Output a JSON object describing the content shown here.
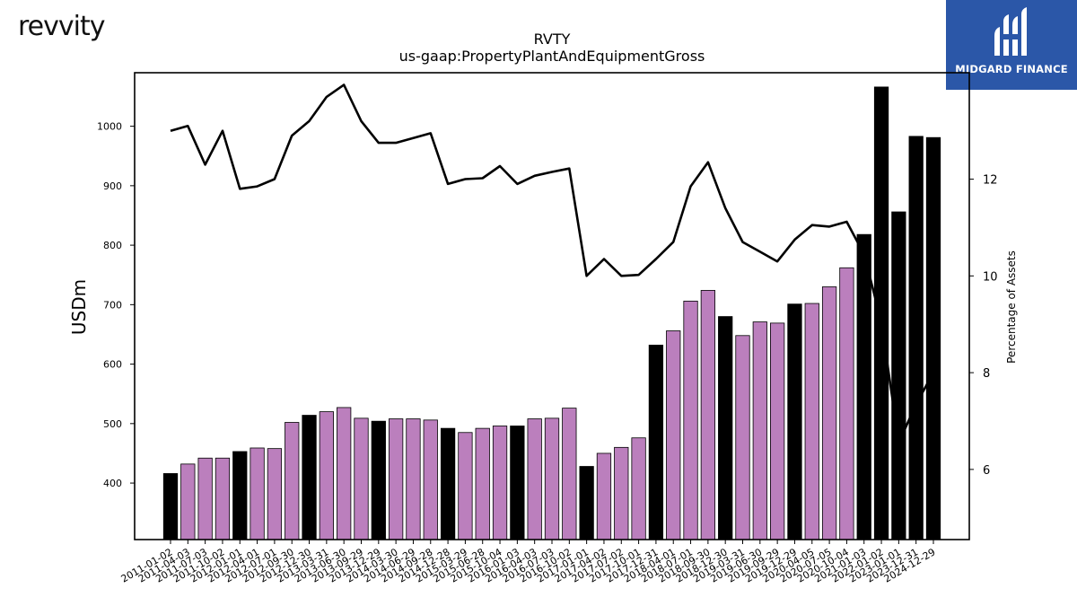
{
  "logos": {
    "left_text": "revvity",
    "right_text": "MIDGARD FINANCE"
  },
  "chart_data": {
    "type": "bar",
    "title": "RVTY",
    "subtitle": "us-gaap:PropertyPlantAndEquipmentGross",
    "ylabel": "USDm",
    "y2label": "Percentage of Assets",
    "ylim": [
      305,
      1090
    ],
    "y2lim": [
      4.55,
      14.2
    ],
    "yticks": [
      400,
      500,
      600,
      700,
      800,
      900,
      1000
    ],
    "y2ticks": [
      6,
      8,
      10,
      12
    ],
    "colors": {
      "q4": "#000000",
      "other": "#bb7fbd",
      "line": "#000000"
    },
    "categories": [
      "2011-01-02",
      "2011-04-03",
      "2011-07-03",
      "2011-10-02",
      "2012-01-01",
      "2012-04-01",
      "2012-07-01",
      "2012-09-30",
      "2012-12-30",
      "2013-03-31",
      "2013-06-30",
      "2013-09-29",
      "2013-12-29",
      "2014-03-30",
      "2014-06-29",
      "2014-09-28",
      "2014-12-28",
      "2015-03-29",
      "2015-06-28",
      "2015-10-04",
      "2016-01-03",
      "2016-04-03",
      "2016-07-03",
      "2016-10-02",
      "2017-01-01",
      "2017-04-02",
      "2017-07-02",
      "2017-10-01",
      "2017-12-31",
      "2018-04-01",
      "2018-07-01",
      "2018-09-30",
      "2018-12-30",
      "2019-03-31",
      "2019-06-30",
      "2019-09-29",
      "2019-12-29",
      "2020-04-05",
      "2020-07-05",
      "2020-10-04",
      "2021-01-03",
      "2022-01-02",
      "2023-01-01",
      "2023-12-31",
      "2024-12-29"
    ],
    "series": [
      {
        "values": [
          416,
          432,
          442,
          442,
          453,
          459,
          458,
          502,
          514,
          520,
          527,
          509,
          504,
          508,
          508,
          506,
          492,
          485,
          492,
          496,
          496,
          508,
          509,
          526,
          428,
          450,
          460,
          476,
          632,
          656,
          706,
          724,
          680,
          648,
          671,
          669,
          701,
          702,
          730,
          762,
          818,
          1066,
          856,
          983,
          981
        ],
        "highlight_q4": [
          true,
          false,
          false,
          false,
          true,
          false,
          false,
          false,
          true,
          false,
          false,
          false,
          true,
          false,
          false,
          false,
          true,
          false,
          false,
          false,
          true,
          false,
          false,
          false,
          true,
          false,
          false,
          false,
          true,
          false,
          false,
          false,
          true,
          false,
          false,
          false,
          true,
          false,
          false,
          false,
          true,
          true,
          true,
          true,
          true
        ]
      },
      {
        "axis": "right",
        "type": "line",
        "values": [
          13.0,
          13.1,
          12.3,
          13.0,
          11.8,
          11.85,
          12.0,
          12.9,
          13.2,
          13.7,
          13.95,
          13.2,
          12.75,
          12.75,
          12.85,
          12.95,
          11.9,
          12.0,
          12.02,
          12.27,
          11.9,
          12.07,
          12.15,
          12.22,
          10.0,
          10.35,
          10.0,
          10.02,
          10.35,
          10.7,
          11.85,
          12.35,
          11.4,
          10.7,
          10.5,
          10.3,
          10.75,
          11.05,
          11.02,
          11.12,
          10.45,
          9.05,
          6.55,
          7.35,
          8.0
        ]
      }
    ]
  }
}
